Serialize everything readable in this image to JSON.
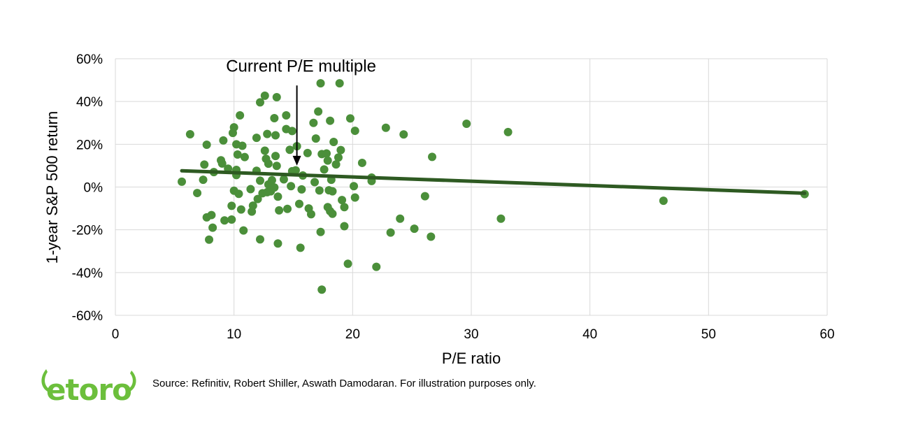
{
  "chart_data": {
    "type": "scatter",
    "title": "",
    "xlabel": "P/E ratio",
    "ylabel": "1-year S&P 500 return",
    "xlim": [
      0,
      60
    ],
    "ylim": [
      -60,
      60
    ],
    "x_ticks": [
      0,
      10,
      20,
      30,
      40,
      50,
      60
    ],
    "y_ticks": [
      60,
      40,
      20,
      0,
      -20,
      -40,
      -60
    ],
    "x_tick_labels": [
      "0",
      "10",
      "20",
      "30",
      "40",
      "50",
      "60"
    ],
    "y_tick_labels": [
      "60%",
      "40%",
      "20%",
      "0%",
      "-20%",
      "-40%",
      "-60%"
    ],
    "grid": true,
    "legend": "none",
    "point_color": "#4b8f3a",
    "trendline_color": "#2e5a22",
    "points": [
      [
        5.6,
        2.5
      ],
      [
        6.3,
        24.7
      ],
      [
        6.9,
        -2.8
      ],
      [
        7.4,
        3.4
      ],
      [
        7.5,
        10.5
      ],
      [
        7.7,
        -14.2
      ],
      [
        7.7,
        19.8
      ],
      [
        7.9,
        -24.6
      ],
      [
        8.1,
        -13.1
      ],
      [
        8.2,
        -19.0
      ],
      [
        8.3,
        7.0
      ],
      [
        8.9,
        12.5
      ],
      [
        9.0,
        11.0
      ],
      [
        9.1,
        21.8
      ],
      [
        9.2,
        -15.6
      ],
      [
        9.5,
        8.6
      ],
      [
        9.8,
        -15.2
      ],
      [
        9.8,
        -8.8
      ],
      [
        9.9,
        25.3
      ],
      [
        10.0,
        27.9
      ],
      [
        10.0,
        -1.7
      ],
      [
        10.2,
        5.6
      ],
      [
        10.2,
        8.0
      ],
      [
        10.2,
        20.0
      ],
      [
        10.3,
        15.2
      ],
      [
        10.4,
        -3.2
      ],
      [
        10.5,
        33.5
      ],
      [
        10.6,
        -10.5
      ],
      [
        10.7,
        19.3
      ],
      [
        10.8,
        -20.3
      ],
      [
        10.9,
        14.0
      ],
      [
        11.4,
        -1.0
      ],
      [
        11.5,
        -11.5
      ],
      [
        11.6,
        -8.7
      ],
      [
        11.9,
        7.6
      ],
      [
        11.9,
        23.0
      ],
      [
        12.0,
        -5.6
      ],
      [
        12.2,
        39.6
      ],
      [
        12.2,
        3.0
      ],
      [
        12.2,
        -24.5
      ],
      [
        12.4,
        -2.9
      ],
      [
        12.6,
        17.0
      ],
      [
        12.6,
        42.7
      ],
      [
        12.7,
        13.2
      ],
      [
        12.8,
        24.8
      ],
      [
        12.8,
        -2.4
      ],
      [
        12.9,
        10.9
      ],
      [
        12.9,
        1.2
      ],
      [
        13.1,
        -2.0
      ],
      [
        13.2,
        3.2
      ],
      [
        13.4,
        32.2
      ],
      [
        13.4,
        -0.2
      ],
      [
        13.5,
        14.5
      ],
      [
        13.5,
        24.2
      ],
      [
        13.6,
        42.0
      ],
      [
        13.6,
        9.9
      ],
      [
        13.7,
        -4.5
      ],
      [
        13.7,
        -26.4
      ],
      [
        13.8,
        -10.9
      ],
      [
        14.2,
        3.6
      ],
      [
        14.4,
        33.5
      ],
      [
        14.4,
        27.1
      ],
      [
        14.5,
        -10.2
      ],
      [
        14.7,
        17.4
      ],
      [
        14.8,
        0.4
      ],
      [
        14.9,
        26.2
      ],
      [
        14.9,
        7.4
      ],
      [
        15.2,
        7.8
      ],
      [
        15.3,
        19.1
      ],
      [
        15.5,
        -7.9
      ],
      [
        15.6,
        -28.4
      ],
      [
        15.7,
        -1.1
      ],
      [
        15.8,
        5.4
      ],
      [
        16.2,
        15.9
      ],
      [
        16.3,
        -10.0
      ],
      [
        16.5,
        -12.7
      ],
      [
        16.7,
        30.0
      ],
      [
        16.8,
        2.3
      ],
      [
        16.9,
        22.7
      ],
      [
        17.1,
        35.3
      ],
      [
        17.2,
        -1.6
      ],
      [
        17.3,
        -21.0
      ],
      [
        17.3,
        48.5
      ],
      [
        17.4,
        15.4
      ],
      [
        17.4,
        -48.0
      ],
      [
        17.6,
        8.2
      ],
      [
        17.8,
        15.7
      ],
      [
        17.9,
        -9.4
      ],
      [
        17.9,
        12.4
      ],
      [
        18.0,
        -1.5
      ],
      [
        18.1,
        31.0
      ],
      [
        18.1,
        -11.3
      ],
      [
        18.2,
        3.4
      ],
      [
        18.3,
        -2.0
      ],
      [
        18.3,
        -12.5
      ],
      [
        18.4,
        21.1
      ],
      [
        18.6,
        10.6
      ],
      [
        18.8,
        13.8
      ],
      [
        18.9,
        48.5
      ],
      [
        19.0,
        17.3
      ],
      [
        19.1,
        -6.1
      ],
      [
        19.3,
        -9.4
      ],
      [
        19.3,
        -18.3
      ],
      [
        19.6,
        -35.9
      ],
      [
        19.8,
        32.1
      ],
      [
        20.1,
        0.4
      ],
      [
        20.2,
        -4.9
      ],
      [
        20.2,
        26.3
      ],
      [
        20.8,
        11.3
      ],
      [
        21.6,
        4.4
      ],
      [
        21.6,
        2.8
      ],
      [
        22.0,
        -37.3
      ],
      [
        22.8,
        27.7
      ],
      [
        23.2,
        -21.3
      ],
      [
        24.0,
        -14.8
      ],
      [
        24.3,
        24.6
      ],
      [
        25.2,
        -19.5
      ],
      [
        26.1,
        -4.3
      ],
      [
        26.6,
        -23.2
      ],
      [
        26.7,
        14.1
      ],
      [
        29.6,
        29.6
      ],
      [
        32.5,
        -14.8
      ],
      [
        33.1,
        25.7
      ],
      [
        46.2,
        -6.4
      ],
      [
        58.1,
        -3.3
      ]
    ],
    "trendline": {
      "x": [
        5.6,
        58.1
      ],
      "y": [
        7.6,
        -2.9
      ]
    },
    "annotation": {
      "text": "Current P/E multiple",
      "x": 15.3,
      "y": 10
    }
  },
  "footer": {
    "source": "Source: Refinitiv, Robert Shiller, Aswath Damodaran. For illustration purposes only.",
    "logo_text": "etoro",
    "logo_color": "#6cbf3c"
  }
}
